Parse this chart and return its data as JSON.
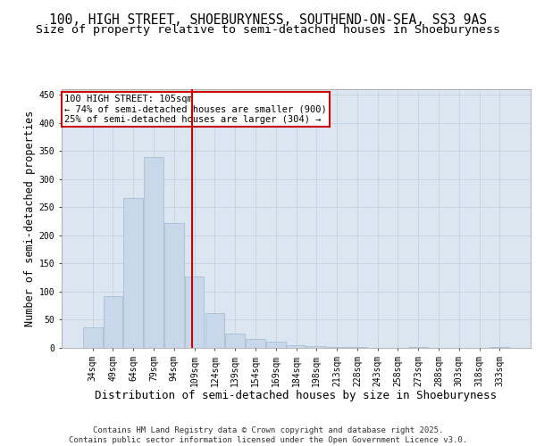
{
  "title1": "100, HIGH STREET, SHOEBURYNESS, SOUTHEND-ON-SEA, SS3 9AS",
  "title2": "Size of property relative to semi-detached houses in Shoeburyness",
  "xlabel": "Distribution of semi-detached houses by size in Shoeburyness",
  "ylabel": "Number of semi-detached properties",
  "categories": [
    "34sqm",
    "49sqm",
    "64sqm",
    "79sqm",
    "94sqm",
    "109sqm",
    "124sqm",
    "139sqm",
    "154sqm",
    "169sqm",
    "184sqm",
    "198sqm",
    "213sqm",
    "228sqm",
    "243sqm",
    "258sqm",
    "273sqm",
    "288sqm",
    "303sqm",
    "318sqm",
    "333sqm"
  ],
  "values": [
    37,
    92,
    267,
    339,
    222,
    127,
    62,
    25,
    16,
    11,
    5,
    3,
    1,
    1,
    0,
    0,
    1,
    0,
    0,
    0,
    1
  ],
  "bar_color": "#c8d8ea",
  "bar_edge_color": "#a0b8cc",
  "grid_color": "#c8d4e4",
  "background_color": "#dce6f0",
  "vline_x": 4.88,
  "vline_color": "#cc0000",
  "annotation_text": "100 HIGH STREET: 105sqm\n← 74% of semi-detached houses are smaller (900)\n25% of semi-detached houses are larger (304) →",
  "annotation_box_facecolor": "#ffffff",
  "annotation_box_edge": "#cc0000",
  "footer_text": "Contains HM Land Registry data © Crown copyright and database right 2025.\nContains public sector information licensed under the Open Government Licence v3.0.",
  "ylim": [
    0,
    460
  ],
  "yticks": [
    0,
    50,
    100,
    150,
    200,
    250,
    300,
    350,
    400,
    450
  ],
  "title_fontsize": 10.5,
  "subtitle_fontsize": 9.5,
  "xlabel_fontsize": 9,
  "ylabel_fontsize": 8.5,
  "tick_fontsize": 7,
  "annotation_fontsize": 7.5,
  "footer_fontsize": 6.5
}
